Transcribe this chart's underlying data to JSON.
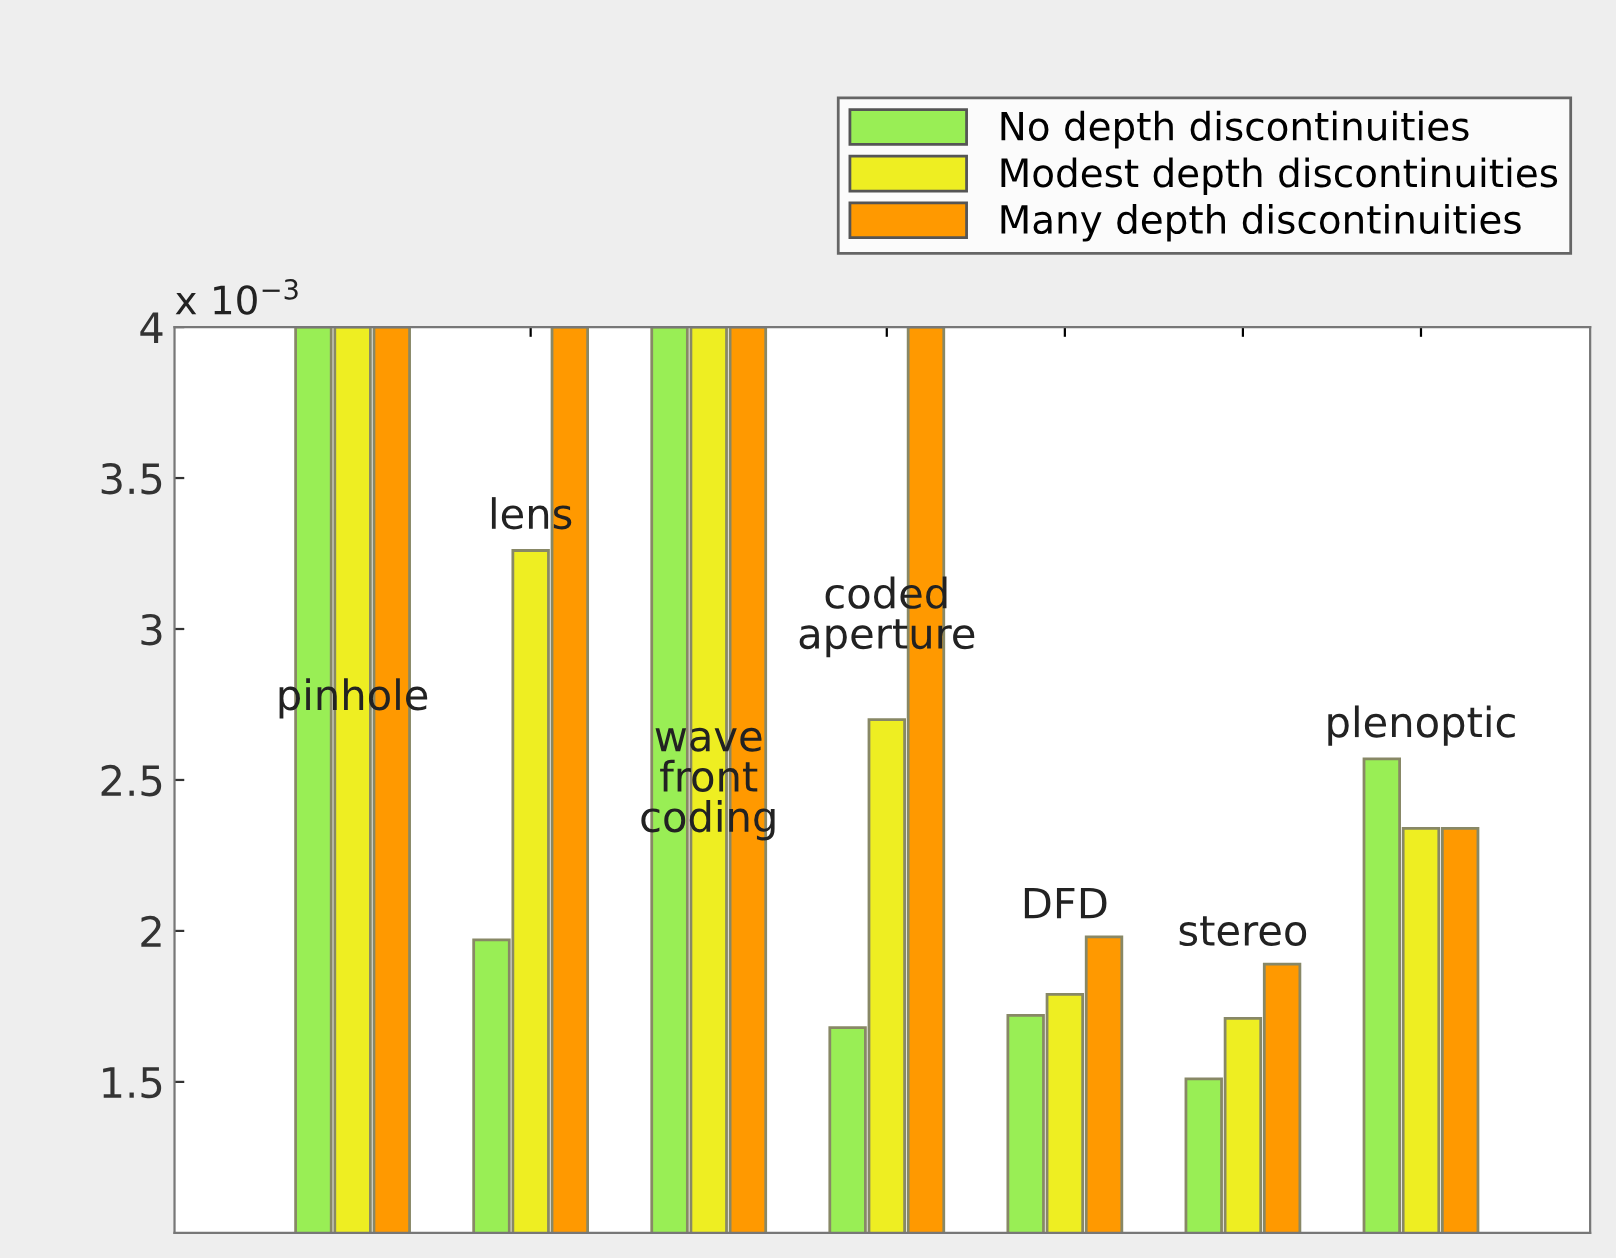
{
  "chart_data": {
    "type": "bar",
    "categories": [
      null,
      null,
      null,
      null,
      null,
      null,
      null
    ],
    "series": [
      {
        "name": "No depth discontinuities",
        "color": "#99ee55",
        "values": [
          4,
          1.97,
          4,
          1.68,
          1.72,
          1.51,
          2.57
        ]
      },
      {
        "name": "Modest depth discontinuities",
        "color": "#eeee22",
        "values": [
          4,
          3.26,
          4,
          2.7,
          1.79,
          1.71,
          2.34
        ]
      },
      {
        "name": "Many depth discontinuities",
        "color": "#ff9900",
        "values": [
          4,
          4,
          4,
          4,
          1.98,
          1.89,
          2.34
        ]
      }
    ],
    "ylim": [
      1,
      4
    ],
    "yticks": [
      1.5,
      2,
      2.5,
      3,
      3.5,
      4
    ],
    "tick_labels": "y",
    "grid": false,
    "legend": "top right",
    "annotations": [
      "x 10$^{−3}$",
      "pinhole",
      "lens",
      "wave\nfront\ncoding",
      "coded\naperture",
      "DFD",
      "stereo",
      "plenoptic"
    ]
  }
}
